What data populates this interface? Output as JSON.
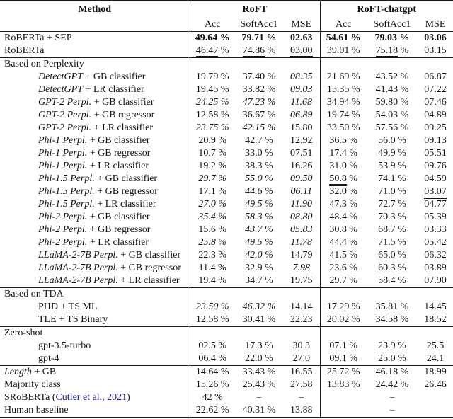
{
  "colors": {
    "citation": "#23238C",
    "rule": "#1a1a1a",
    "text": "#141414"
  },
  "percent_suffix": " %",
  "table": {
    "header": {
      "method_label": "Method",
      "group1": "RoFT",
      "group2": "RoFT-chatgpt",
      "subcols": [
        "Acc",
        "SoftAcc1",
        "MSE"
      ]
    },
    "rows": [
      {
        "k": "d",
        "rt": 1,
        "m": [
          [
            "RoBERTa + SEP",
            0
          ]
        ],
        "c": [
          {
            "v": "49.64",
            "p": 1,
            "b": 1
          },
          {
            "v": "79.71",
            "p": 1,
            "b": 1
          },
          {
            "v": "02.63",
            "b": 1
          },
          {
            "v": "54.61",
            "p": 1,
            "b": 1
          },
          {
            "v": "79.03",
            "p": 1,
            "b": 1
          },
          {
            "v": "03.06",
            "b": 1
          }
        ]
      },
      {
        "k": "d",
        "m": [
          [
            "RoBERTa",
            0
          ]
        ],
        "c": [
          {
            "v": "46.47",
            "p": 1,
            "u": 1
          },
          {
            "v": "74.86",
            "p": 1,
            "u": 1
          },
          {
            "v": "03.00",
            "u": 1
          },
          {
            "v": "39.01",
            "p": 1
          },
          {
            "v": "75.18",
            "p": 1,
            "u": 1
          },
          {
            "v": "03.15"
          }
        ]
      },
      {
        "k": "s",
        "rt": 1,
        "label": "Based on Perplexity"
      },
      {
        "k": "d",
        "ind": 1,
        "m": [
          [
            "DetectGPT",
            1
          ],
          [
            " + GB classifier",
            0
          ]
        ],
        "c": [
          {
            "v": "19.79",
            "p": 1
          },
          {
            "v": "37.40",
            "p": 1
          },
          {
            "v": "08.35",
            "i": 1
          },
          {
            "v": "21.69",
            "p": 1
          },
          {
            "v": "43.52",
            "p": 1
          },
          {
            "v": "06.87"
          }
        ]
      },
      {
        "k": "d",
        "ind": 1,
        "m": [
          [
            "DetectGPT",
            1
          ],
          [
            " + LR classifier",
            0
          ]
        ],
        "c": [
          {
            "v": "19.45",
            "p": 1
          },
          {
            "v": "33.82",
            "p": 1
          },
          {
            "v": "09.03",
            "i": 1
          },
          {
            "v": "15.35",
            "p": 1
          },
          {
            "v": "41.43",
            "p": 1
          },
          {
            "v": "07.22"
          }
        ]
      },
      {
        "k": "d",
        "ind": 1,
        "m": [
          [
            "GPT-2 Perpl.",
            1
          ],
          [
            " + GB classifier",
            0
          ]
        ],
        "c": [
          {
            "v": "24.25",
            "p": 1,
            "i": 1
          },
          {
            "v": "47.23",
            "p": 1,
            "i": 1
          },
          {
            "v": "11.68",
            "i": 1
          },
          {
            "v": "34.94",
            "p": 1
          },
          {
            "v": "59.80",
            "p": 1
          },
          {
            "v": "07.46"
          }
        ]
      },
      {
        "k": "d",
        "ind": 1,
        "m": [
          [
            "GPT-2 Perpl.",
            1
          ],
          [
            " + GB regressor",
            0
          ]
        ],
        "c": [
          {
            "v": "12.58",
            "p": 1
          },
          {
            "v": "36.67",
            "p": 1
          },
          {
            "v": "06.89",
            "i": 1
          },
          {
            "v": "19.74",
            "p": 1
          },
          {
            "v": "54.03",
            "p": 1
          },
          {
            "v": "04.89"
          }
        ]
      },
      {
        "k": "d",
        "ind": 1,
        "m": [
          [
            "GPT-2 Perpl.",
            1
          ],
          [
            " + LR classifier",
            0
          ]
        ],
        "c": [
          {
            "v": "23.75",
            "p": 1,
            "i": 1
          },
          {
            "v": "42.15",
            "p": 1,
            "i": 1
          },
          {
            "v": "15.80"
          },
          {
            "v": "33.50",
            "p": 1
          },
          {
            "v": "57.56",
            "p": 1
          },
          {
            "v": "09.25"
          }
        ]
      },
      {
        "k": "d",
        "ind": 1,
        "m": [
          [
            "Phi-1 Perpl.",
            1
          ],
          [
            " + GB classifier",
            0
          ]
        ],
        "c": [
          {
            "v": "20.9",
            "p": 1
          },
          {
            "v": "42.7",
            "p": 1
          },
          {
            "v": "12.92"
          },
          {
            "v": "36.5",
            "p": 1
          },
          {
            "v": "56.0",
            "p": 1
          },
          {
            "v": "09.13"
          }
        ]
      },
      {
        "k": "d",
        "ind": 1,
        "m": [
          [
            "Phi-1 Perpl.",
            1
          ],
          [
            " + GB regressor",
            0
          ]
        ],
        "c": [
          {
            "v": "10.7",
            "p": 1
          },
          {
            "v": "33.0",
            "p": 1
          },
          {
            "v": "07.51"
          },
          {
            "v": "17.4",
            "p": 1
          },
          {
            "v": "49.9",
            "p": 1
          },
          {
            "v": "05.51"
          }
        ]
      },
      {
        "k": "d",
        "ind": 1,
        "m": [
          [
            "Phi-1 Perpl.",
            1
          ],
          [
            " + LR classifier",
            0
          ]
        ],
        "c": [
          {
            "v": "19.2",
            "p": 1
          },
          {
            "v": "38.3",
            "p": 1
          },
          {
            "v": "16.26"
          },
          {
            "v": "31.0",
            "p": 1
          },
          {
            "v": "53.9",
            "p": 1
          },
          {
            "v": "09.76"
          }
        ]
      },
      {
        "k": "d",
        "ind": 1,
        "m": [
          [
            "Phi-1.5 Perpl.",
            1
          ],
          [
            " + GB classifier",
            0
          ]
        ],
        "c": [
          {
            "v": "29.7",
            "p": 1,
            "i": 1
          },
          {
            "v": "55.0",
            "p": 1,
            "i": 1
          },
          {
            "v": "09.50",
            "i": 1
          },
          {
            "v": "50.8",
            "p": 1,
            "u": 1
          },
          {
            "v": "74.1",
            "p": 1
          },
          {
            "v": "04.59"
          }
        ]
      },
      {
        "k": "d",
        "ind": 1,
        "m": [
          [
            "Phi-1.5 Perpl.",
            1
          ],
          [
            " + GB regressor",
            0
          ]
        ],
        "c": [
          {
            "v": "17.1",
            "p": 1
          },
          {
            "v": "44.6",
            "p": 1,
            "i": 1
          },
          {
            "v": "06.11",
            "i": 1
          },
          {
            "v": "32.0",
            "p": 1
          },
          {
            "v": "71.0",
            "p": 1
          },
          {
            "v": "03.07",
            "u": 1
          }
        ]
      },
      {
        "k": "d",
        "ind": 1,
        "m": [
          [
            "Phi-1.5 Perpl.",
            1
          ],
          [
            " + LR classifier",
            0
          ]
        ],
        "c": [
          {
            "v": "27.0",
            "p": 1,
            "i": 1
          },
          {
            "v": "49.5",
            "p": 1,
            "i": 1
          },
          {
            "v": "11.90",
            "i": 1
          },
          {
            "v": "47.3",
            "p": 1
          },
          {
            "v": "72.7",
            "p": 1
          },
          {
            "v": "04.77"
          }
        ]
      },
      {
        "k": "d",
        "ind": 1,
        "m": [
          [
            "Phi-2 Perpl.",
            1
          ],
          [
            " + GB classifier",
            0
          ]
        ],
        "c": [
          {
            "v": "35.4",
            "p": 1,
            "i": 1
          },
          {
            "v": "58.3",
            "p": 1,
            "i": 1
          },
          {
            "v": "08.80",
            "i": 1
          },
          {
            "v": "48.4",
            "p": 1
          },
          {
            "v": "70.3",
            "p": 1
          },
          {
            "v": "05.39"
          }
        ]
      },
      {
        "k": "d",
        "ind": 1,
        "m": [
          [
            "Phi-2 Perpl.",
            1
          ],
          [
            " + GB regressor",
            0
          ]
        ],
        "c": [
          {
            "v": "15.6",
            "p": 1
          },
          {
            "v": "43.7",
            "p": 1,
            "i": 1
          },
          {
            "v": "05.83",
            "i": 1
          },
          {
            "v": "30.8",
            "p": 1
          },
          {
            "v": "68.7",
            "p": 1
          },
          {
            "v": "03.33"
          }
        ]
      },
      {
        "k": "d",
        "ind": 1,
        "m": [
          [
            "Phi-2 Perpl.",
            1
          ],
          [
            " + LR classifier",
            0
          ]
        ],
        "c": [
          {
            "v": "25.8",
            "p": 1,
            "i": 1
          },
          {
            "v": "49.5",
            "p": 1,
            "i": 1
          },
          {
            "v": "11.78",
            "i": 1
          },
          {
            "v": "44.4",
            "p": 1
          },
          {
            "v": "71.5",
            "p": 1
          },
          {
            "v": "05.42"
          }
        ]
      },
      {
        "k": "d",
        "ind": 1,
        "m": [
          [
            "LLaMA-2-7B Perpl.",
            1
          ],
          [
            " + GB classifier",
            0
          ]
        ],
        "c": [
          {
            "v": "22.3",
            "p": 1
          },
          {
            "v": "42.0",
            "p": 1,
            "i": 1
          },
          {
            "v": "14.79"
          },
          {
            "v": "41.5",
            "p": 1
          },
          {
            "v": "65.0",
            "p": 1
          },
          {
            "v": "06.32"
          }
        ]
      },
      {
        "k": "d",
        "ind": 1,
        "m": [
          [
            "LLaMA-2-7B Perpl.",
            1
          ],
          [
            " + GB regressor",
            0
          ]
        ],
        "c": [
          {
            "v": "11.4",
            "p": 1
          },
          {
            "v": "32.9",
            "p": 1
          },
          {
            "v": "7.98",
            "i": 1
          },
          {
            "v": "23.6",
            "p": 1
          },
          {
            "v": "60.3",
            "p": 1
          },
          {
            "v": "03.89"
          }
        ]
      },
      {
        "k": "d",
        "ind": 1,
        "m": [
          [
            "LLaMA-2-7B Perpl.",
            1
          ],
          [
            " + LR classifier",
            0
          ]
        ],
        "c": [
          {
            "v": "19.4",
            "p": 1
          },
          {
            "v": "34.7",
            "p": 1
          },
          {
            "v": "19.75"
          },
          {
            "v": "29.7",
            "p": 1
          },
          {
            "v": "58.4",
            "p": 1
          },
          {
            "v": "07.90"
          }
        ]
      },
      {
        "k": "s",
        "rt": 1,
        "label": "Based on TDA"
      },
      {
        "k": "d",
        "ind": 1,
        "m": [
          [
            "PHD + TS ML",
            0
          ]
        ],
        "c": [
          {
            "v": "23.50",
            "p": 1,
            "i": 1
          },
          {
            "v": "46.32",
            "p": 1,
            "i": 1
          },
          {
            "v": "14.14"
          },
          {
            "v": "17.29",
            "p": 1
          },
          {
            "v": "35.81",
            "p": 1
          },
          {
            "v": "14.45"
          }
        ]
      },
      {
        "k": "d",
        "ind": 1,
        "m": [
          [
            "TLE + TS Binary",
            0
          ]
        ],
        "c": [
          {
            "v": "12.58",
            "p": 1
          },
          {
            "v": "30.41",
            "p": 1
          },
          {
            "v": "22.23"
          },
          {
            "v": "20.02",
            "p": 1
          },
          {
            "v": "34.58",
            "p": 1
          },
          {
            "v": "18.52"
          }
        ]
      },
      {
        "k": "s",
        "rt": 1,
        "label": "Zero-shot"
      },
      {
        "k": "d",
        "ind": 1,
        "m": [
          [
            "gpt-3.5-turbo",
            0
          ]
        ],
        "c": [
          {
            "v": "02.5",
            "p": 1
          },
          {
            "v": "17.3",
            "p": 1
          },
          {
            "v": "30.3"
          },
          {
            "v": "07.1",
            "p": 1
          },
          {
            "v": "23.9",
            "p": 1
          },
          {
            "v": "25.5"
          }
        ]
      },
      {
        "k": "d",
        "ind": 1,
        "m": [
          [
            "gpt-4",
            0
          ]
        ],
        "c": [
          {
            "v": "06.4",
            "p": 1
          },
          {
            "v": "22.0",
            "p": 1
          },
          {
            "v": "27.0"
          },
          {
            "v": "09.1",
            "p": 1
          },
          {
            "v": "25.0",
            "p": 1
          },
          {
            "v": "24.1"
          }
        ]
      },
      {
        "k": "d",
        "rt": 1,
        "m": [
          [
            "Length",
            1
          ],
          [
            " + GB",
            0
          ]
        ],
        "c": [
          {
            "v": "14.64",
            "p": 1
          },
          {
            "v": "33.43",
            "p": 1
          },
          {
            "v": "16.55"
          },
          {
            "v": "25.72",
            "p": 1
          },
          {
            "v": "46.18",
            "p": 1
          },
          {
            "v": "18.99"
          }
        ]
      },
      {
        "k": "d",
        "m": [
          [
            "Majority class",
            0
          ]
        ],
        "c": [
          {
            "v": "15.26",
            "p": 1
          },
          {
            "v": "25.43",
            "p": 1
          },
          {
            "v": "27.58"
          },
          {
            "v": "13.83",
            "p": 1
          },
          {
            "v": "24.42",
            "p": 1
          },
          {
            "v": "26.46"
          }
        ]
      },
      {
        "k": "d",
        "m": [
          [
            "SRoBERTa (",
            0
          ],
          [
            "Cutler et al., 2021",
            2
          ],
          [
            ")",
            0
          ]
        ],
        "c": [
          {
            "v": "42",
            "p": 1
          },
          {
            "v": "–"
          },
          {
            "v": "–"
          },
          {
            "v": ""
          },
          {
            "v": "–"
          },
          {
            "v": ""
          }
        ]
      },
      {
        "k": "d",
        "m": [
          [
            "Human baseline",
            0
          ]
        ],
        "c": [
          {
            "v": "22.62",
            "p": 1
          },
          {
            "v": "40.31",
            "p": 1
          },
          {
            "v": "13.88"
          },
          {
            "v": ""
          },
          {
            "v": "–"
          },
          {
            "v": ""
          }
        ]
      }
    ]
  }
}
